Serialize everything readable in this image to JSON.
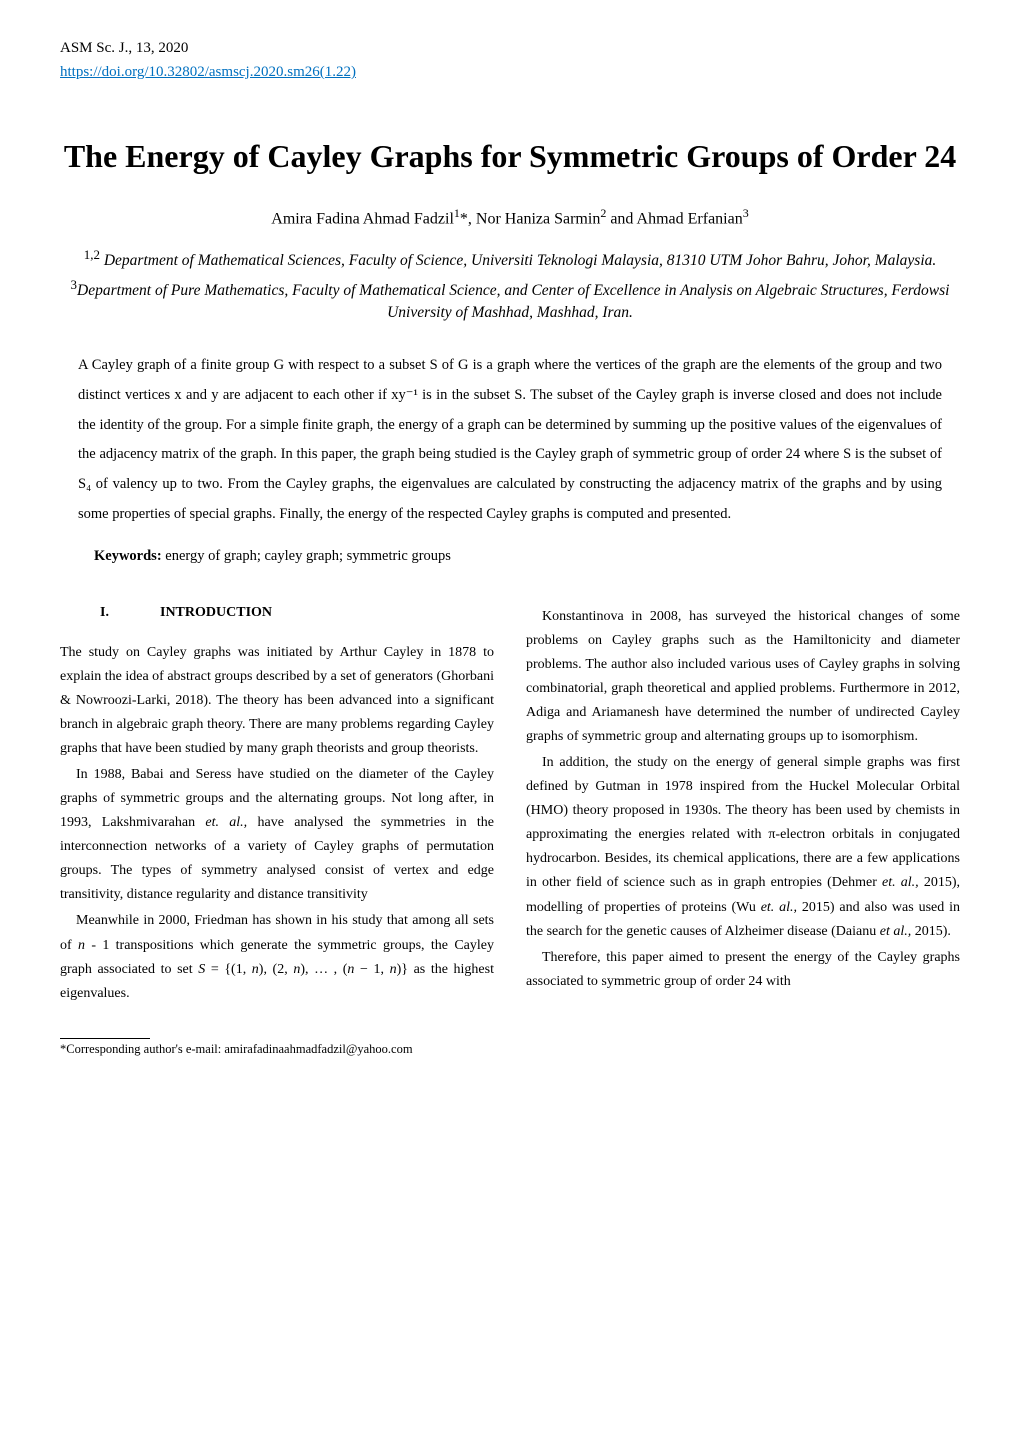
{
  "journal_line": "ASM Sc. J., 13, 2020",
  "doi_text": "https://doi.org/10.32802/asmscj.2020.sm26(1.22)",
  "title": "The Energy of Cayley Graphs for Symmetric Groups of Order 24",
  "authors_html": "Amira Fadina Ahmad Fadzil<sup>1</sup>*, Nor Haniza Sarmin<sup>2</sup> and Ahmad Erfanian<sup>3</sup>",
  "affiliations": [
    {
      "sup": "1,2",
      "text": " Department of Mathematical Sciences, Faculty of Science, Universiti Teknologi Malaysia, 81310 UTM Johor Bahru, Johor, Malaysia."
    },
    {
      "sup": "3",
      "text": "Department of Pure Mathematics, Faculty of Mathematical Science, and Center of Excellence in Analysis on Algebraic Structures, Ferdowsi University of Mashhad, Mashhad, Iran."
    }
  ],
  "abstract": "A Cayley graph of a finite group G with respect to a subset S of G is a graph where the vertices of the graph are the elements of the group and two distinct vertices x and y are adjacent to each other if xy⁻¹ is in the subset S. The subset of the Cayley graph is inverse closed and does not include the identity of the group. For a simple finite graph, the energy of a graph can be determined by summing up the positive values of the eigenvalues of the adjacency matrix of the graph. In this paper, the graph being studied is the Cayley graph of symmetric group of order 24 where S is the subset of S₄ of valency up to two. From the Cayley graphs, the eigenvalues are calculated by constructing the adjacency matrix of the graphs and by using some properties of special graphs. Finally, the energy of the respected Cayley graphs is computed and presented.",
  "keywords_label": "Keywords:",
  "keywords_text": "  energy of graph; cayley graph; symmetric groups",
  "section_roman": "I.",
  "section_title": "INTRODUCTION",
  "left_paragraphs": [
    "The study on Cayley graphs was initiated by Arthur Cayley in 1878 to explain the idea of abstract groups described by a set of generators (Ghorbani & Nowroozi-Larki, 2018). The theory has been advanced into a significant branch in algebraic graph theory. There are many problems regarding Cayley graphs that have been studied by many graph theorists and group theorists.",
    "In 1988, Babai and Seress have studied on the diameter of the Cayley graphs of symmetric groups and the alternating groups. Not long after, in 1993, Lakshmivarahan et. al., have analysed the symmetries in the interconnection networks of a variety of Cayley graphs of permutation groups. The types of symmetry analysed consist of vertex and edge transitivity, distance regularity and distance transitivity",
    "Meanwhile in 2000, Friedman has shown in his study that among all sets of n - 1 transpositions which generate the symmetric groups, the Cayley graph associated to set S = {(1, n), (2, n), … , (n − 1, n)} as the highest eigenvalues."
  ],
  "right_paragraphs": [
    "Konstantinova in 2008, has surveyed the historical changes of some problems on Cayley graphs such as the Hamiltonicity and diameter problems. The author also included various uses of Cayley graphs in solving combinatorial, graph theoretical and applied problems. Furthermore in 2012, Adiga and Ariamanesh have determined the number of undirected Cayley graphs of symmetric group and alternating groups up to isomorphism.",
    "In addition, the study on the energy of general simple graphs was first defined by Gutman in 1978 inspired from the Huckel Molecular Orbital (HMO) theory proposed in 1930s. The theory has been used by chemists in approximating the energies related with π-electron orbitals in conjugated hydrocarbon. Besides, its chemical applications, there are a few applications in other field of science such as in graph entropies (Dehmer et. al., 2015), modelling of properties of proteins (Wu et. al., 2015) and also was used in the search for the genetic causes of Alzheimer disease (Daianu et al., 2015).",
    "Therefore, this paper aimed to present the energy of the Cayley graphs associated to symmetric group of order 24 with"
  ],
  "footnote": "*Corresponding author's e-mail: amirafadinaahmadfadzil@yahoo.com",
  "colors": {
    "link": "#0070c0",
    "text": "#000000",
    "background": "#ffffff"
  }
}
